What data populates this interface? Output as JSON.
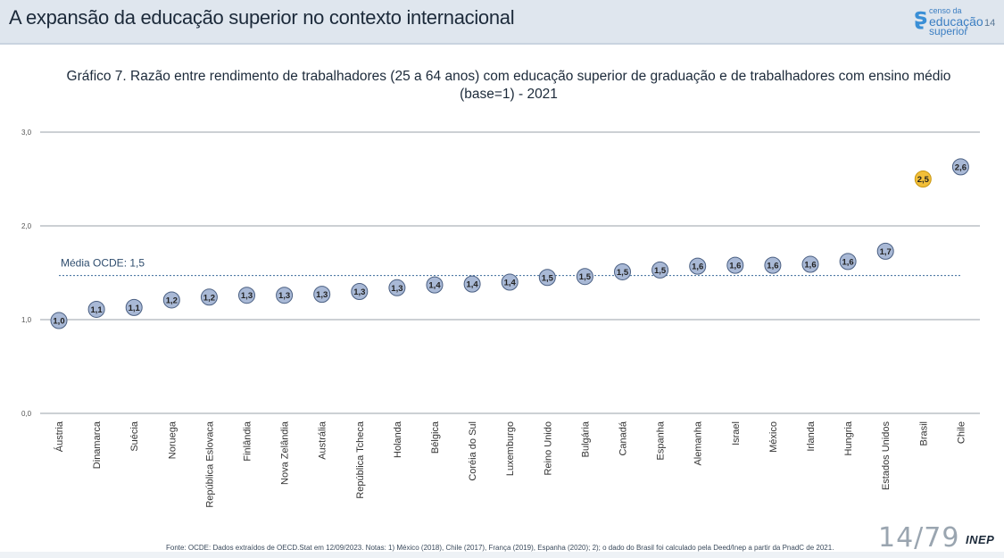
{
  "header": {
    "title": "A expansão da educação superior no contexto internacional",
    "logo_line1": "censo da",
    "logo_line2": "educação",
    "logo_line3": "superior",
    "slide_number": "14"
  },
  "chart_data": {
    "type": "scatter",
    "title": "Gráfico 7. Razão entre rendimento de trabalhadores (25 a 64 anos) com educação superior de graduação e de trabalhadores com ensino médio (base=1) - 2021",
    "categories": [
      "Áustria",
      "Dinamarca",
      "Suécia",
      "Noruega",
      "República Eslovaca",
      "Finlândia",
      "Nova Zelândia",
      "Austrália",
      "República Tcheca",
      "Holanda",
      "Bélgica",
      "Coréia do Sul",
      "Luxemburgo",
      "Reino Unido",
      "Bulgária",
      "Canadá",
      "Espanha",
      "Alemanha",
      "Israel",
      "México",
      "Irlanda",
      "Hungria",
      "Estados Unidos",
      "Brasil",
      "Chile"
    ],
    "values": [
      1.0,
      1.1,
      1.1,
      1.2,
      1.2,
      1.3,
      1.3,
      1.3,
      1.3,
      1.3,
      1.4,
      1.4,
      1.4,
      1.5,
      1.5,
      1.5,
      1.5,
      1.6,
      1.6,
      1.6,
      1.6,
      1.6,
      1.7,
      2.5,
      2.6
    ],
    "plot_y": [
      0.99,
      1.11,
      1.13,
      1.21,
      1.24,
      1.26,
      1.26,
      1.27,
      1.3,
      1.34,
      1.37,
      1.38,
      1.4,
      1.45,
      1.46,
      1.51,
      1.53,
      1.57,
      1.58,
      1.58,
      1.59,
      1.62,
      1.73,
      2.5,
      2.63
    ],
    "labels": [
      "1,0",
      "1,1",
      "1,1",
      "1,2",
      "1,2",
      "1,3",
      "1,3",
      "1,3",
      "1,3",
      "1,3",
      "1,4",
      "1,4",
      "1,4",
      "1,5",
      "1,5",
      "1,5",
      "1,5",
      "1,6",
      "1,6",
      "1,6",
      "1,6",
      "1,6",
      "1,7",
      "2,5",
      "2,6"
    ],
    "highlight_index": 23,
    "ylim": [
      0,
      3
    ],
    "yticks": [
      0,
      1,
      2,
      3
    ],
    "ytick_labels": [
      "0,0",
      "1,0",
      "2,0",
      "3,0"
    ],
    "grid": true,
    "reference_line": {
      "value": 1.47,
      "label": "Média OCDE: 1,5"
    },
    "colors": {
      "point": "#a9b9d6",
      "point_stroke": "#4a5f82",
      "highlight": "#f2bf3a",
      "highlight_stroke": "#c99610",
      "reference": "#3a6a9a",
      "grid": "#9aa0a8"
    }
  },
  "footer": {
    "source": "Fonte: OCDE: Dados extraídos de OECD.Stat em 12/09/2023. Notas: 1) México (2018), Chile (2017), França (2019), Espanha (2020); 2); o dado do Brasil foi calculado pela Deed/Inep a partir da PnadC de 2021.",
    "page_counter": "14/79",
    "brand": "INEP"
  }
}
